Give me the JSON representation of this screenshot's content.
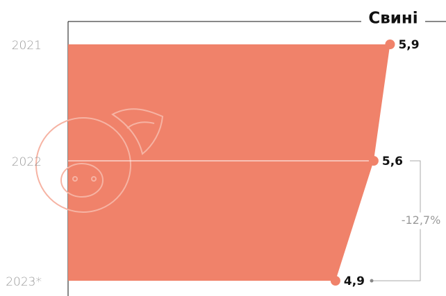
{
  "chart_data": {
    "type": "area",
    "title": "Свині",
    "categories": [
      "2021",
      "2022",
      "2023*"
    ],
    "values": [
      5.9,
      5.6,
      4.9
    ],
    "value_labels": [
      "5,9",
      "5,6",
      "4,9"
    ],
    "annotation": "-12,7%",
    "color": "#f0826a",
    "xlim": [
      0,
      6.9
    ]
  }
}
